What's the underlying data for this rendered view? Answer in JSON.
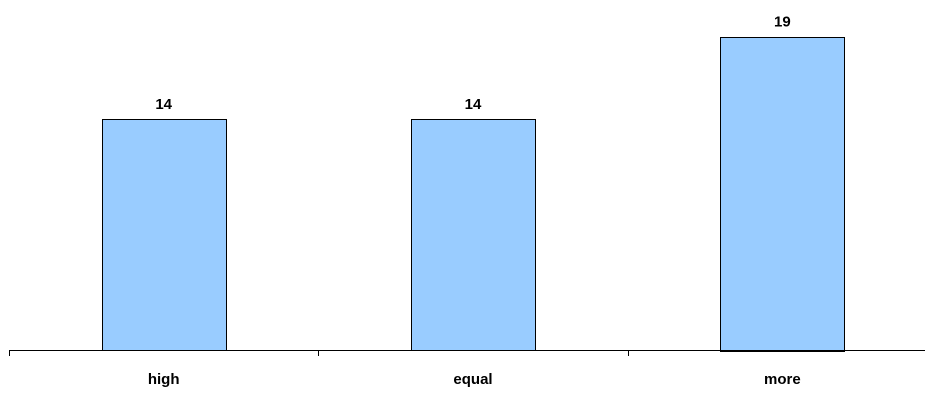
{
  "chart_data": {
    "type": "bar",
    "categories": [
      "high",
      "equal",
      "more"
    ],
    "values": [
      14,
      14,
      19
    ],
    "ylim": [
      0,
      20
    ],
    "show_data_labels": true,
    "legend": "none",
    "grid": false,
    "colors": {
      "bar_fill": "#99ccff",
      "bar_stroke": "#000000",
      "axis": "#000000"
    }
  }
}
